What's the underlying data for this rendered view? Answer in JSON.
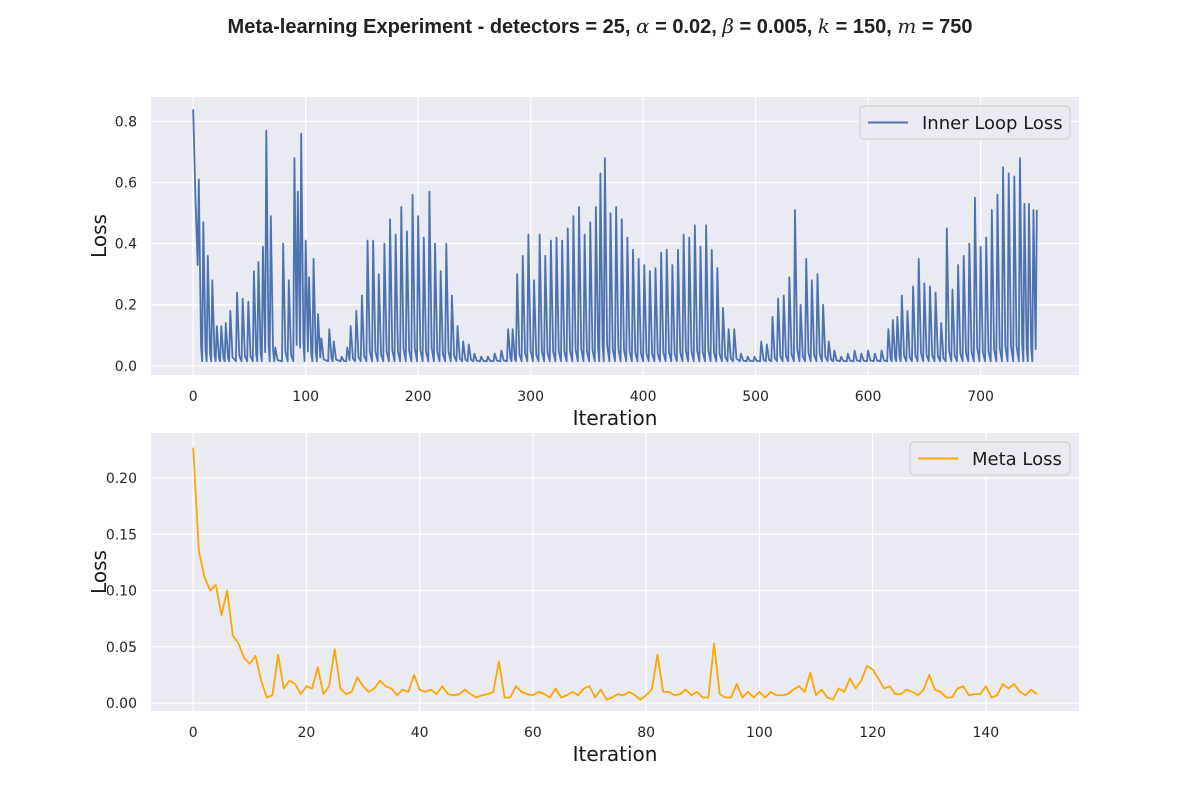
{
  "title": {
    "prefix": "Meta-learning Experiment - detectors = 25, ",
    "alpha_sym": "α",
    "alpha_val": " = 0.02, ",
    "beta_sym": "β",
    "beta_val": " = 0.005, ",
    "k_sym": "k",
    "k_val": " = 150, ",
    "m_sym": "m",
    "m_val": " = 750"
  },
  "colors": {
    "background": "#eaeaf2",
    "grid": "#ffffff",
    "inner": "#4c72b0",
    "meta": "#ffa500"
  },
  "chart_data": [
    {
      "type": "line",
      "title": "",
      "xlabel": "Iteration",
      "ylabel": "Loss",
      "xlim": [
        -37.5,
        787.5
      ],
      "ylim": [
        -0.03,
        0.88
      ],
      "xticks": [
        0,
        100,
        200,
        300,
        400,
        500,
        600,
        700
      ],
      "yticks": [
        0.0,
        0.2,
        0.4,
        0.6,
        0.8
      ],
      "ytick_labels": [
        "0.0",
        "0.2",
        "0.4",
        "0.6",
        "0.8"
      ],
      "grid": true,
      "legend": "top-right",
      "series": [
        {
          "name": "Inner Loop Loss",
          "color": "#4c72b0",
          "baseline": 0.015,
          "start": [
            [
              0,
              0.84
            ],
            [
              2,
              0.55
            ],
            [
              4,
              0.33
            ]
          ],
          "end_x": 750,
          "peaks": [
            [
              5,
              0.61
            ],
            [
              9,
              0.47
            ],
            [
              13,
              0.36
            ],
            [
              17,
              0.28
            ],
            [
              21,
              0.13
            ],
            [
              25,
              0.13
            ],
            [
              29,
              0.14
            ],
            [
              33,
              0.18
            ],
            [
              39,
              0.24
            ],
            [
              44,
              0.22
            ],
            [
              49,
              0.21
            ],
            [
              54,
              0.31
            ],
            [
              58,
              0.34
            ],
            [
              62,
              0.39
            ],
            [
              65,
              0.77
            ],
            [
              69,
              0.49
            ],
            [
              73,
              0.06
            ],
            [
              80,
              0.4
            ],
            [
              85,
              0.28
            ],
            [
              90,
              0.68
            ],
            [
              93,
              0.57
            ],
            [
              96,
              0.76
            ],
            [
              100,
              0.41
            ],
            [
              103,
              0.29
            ],
            [
              107,
              0.35
            ],
            [
              111,
              0.17
            ],
            [
              114,
              0.09
            ],
            [
              121,
              0.12
            ],
            [
              125,
              0.08
            ],
            [
              132,
              0.03
            ],
            [
              137,
              0.06
            ],
            [
              140,
              0.13
            ],
            [
              145,
              0.18
            ],
            [
              150,
              0.23
            ],
            [
              155,
              0.41
            ],
            [
              160,
              0.41
            ],
            [
              165,
              0.3
            ],
            [
              170,
              0.4
            ],
            [
              175,
              0.48
            ],
            [
              180,
              0.43
            ],
            [
              185,
              0.52
            ],
            [
              190,
              0.44
            ],
            [
              195,
              0.56
            ],
            [
              200,
              0.49
            ],
            [
              205,
              0.42
            ],
            [
              210,
              0.57
            ],
            [
              215,
              0.4
            ],
            [
              220,
              0.31
            ],
            [
              225,
              0.4
            ],
            [
              230,
              0.23
            ],
            [
              235,
              0.13
            ],
            [
              240,
              0.08
            ],
            [
              245,
              0.07
            ],
            [
              250,
              0.04
            ],
            [
              256,
              0.03
            ],
            [
              262,
              0.03
            ],
            [
              268,
              0.04
            ],
            [
              274,
              0.05
            ],
            [
              280,
              0.12
            ],
            [
              284,
              0.12
            ],
            [
              288,
              0.3
            ],
            [
              293,
              0.36
            ],
            [
              298,
              0.43
            ],
            [
              303,
              0.28
            ],
            [
              308,
              0.43
            ],
            [
              313,
              0.36
            ],
            [
              318,
              0.41
            ],
            [
              323,
              0.42
            ],
            [
              328,
              0.41
            ],
            [
              333,
              0.45
            ],
            [
              338,
              0.49
            ],
            [
              343,
              0.52
            ],
            [
              348,
              0.43
            ],
            [
              353,
              0.47
            ],
            [
              358,
              0.52
            ],
            [
              362,
              0.63
            ],
            [
              366,
              0.68
            ],
            [
              371,
              0.5
            ],
            [
              376,
              0.52
            ],
            [
              381,
              0.48
            ],
            [
              386,
              0.42
            ],
            [
              391,
              0.38
            ],
            [
              396,
              0.35
            ],
            [
              401,
              0.33
            ],
            [
              406,
              0.31
            ],
            [
              411,
              0.32
            ],
            [
              416,
              0.37
            ],
            [
              421,
              0.38
            ],
            [
              426,
              0.33
            ],
            [
              431,
              0.38
            ],
            [
              436,
              0.43
            ],
            [
              441,
              0.42
            ],
            [
              446,
              0.46
            ],
            [
              451,
              0.39
            ],
            [
              456,
              0.46
            ],
            [
              461,
              0.38
            ],
            [
              466,
              0.32
            ],
            [
              471,
              0.19
            ],
            [
              476,
              0.12
            ],
            [
              481,
              0.12
            ],
            [
              487,
              0.04
            ],
            [
              493,
              0.03
            ],
            [
              499,
              0.03
            ],
            [
              505,
              0.08
            ],
            [
              510,
              0.07
            ],
            [
              515,
              0.16
            ],
            [
              520,
              0.22
            ],
            [
              525,
              0.23
            ],
            [
              530,
              0.29
            ],
            [
              535,
              0.51
            ],
            [
              540,
              0.2
            ],
            [
              545,
              0.35
            ],
            [
              550,
              0.28
            ],
            [
              555,
              0.3
            ],
            [
              560,
              0.2
            ],
            [
              565,
              0.08
            ],
            [
              570,
              0.05
            ],
            [
              576,
              0.03
            ],
            [
              582,
              0.04
            ],
            [
              588,
              0.05
            ],
            [
              594,
              0.04
            ],
            [
              600,
              0.05
            ],
            [
              606,
              0.04
            ],
            [
              612,
              0.05
            ],
            [
              618,
              0.12
            ],
            [
              622,
              0.15
            ],
            [
              626,
              0.16
            ],
            [
              630,
              0.23
            ],
            [
              635,
              0.18
            ],
            [
              640,
              0.26
            ],
            [
              645,
              0.35
            ],
            [
              650,
              0.27
            ],
            [
              655,
              0.26
            ],
            [
              660,
              0.24
            ],
            [
              665,
              0.14
            ],
            [
              670,
              0.45
            ],
            [
              675,
              0.25
            ],
            [
              680,
              0.33
            ],
            [
              685,
              0.36
            ],
            [
              690,
              0.4
            ],
            [
              695,
              0.55
            ],
            [
              700,
              0.39
            ],
            [
              705,
              0.42
            ],
            [
              710,
              0.51
            ],
            [
              715,
              0.56
            ],
            [
              720,
              0.65
            ],
            [
              725,
              0.63
            ],
            [
              730,
              0.62
            ],
            [
              735,
              0.68
            ],
            [
              739,
              0.53
            ],
            [
              743,
              0.53
            ],
            [
              747,
              0.51
            ],
            [
              750,
              0.51
            ]
          ]
        }
      ]
    },
    {
      "type": "line",
      "title": "",
      "xlabel": "Iteration",
      "ylabel": "Loss",
      "xlim": [
        -7.45,
        156.45
      ],
      "ylim": [
        -0.007,
        0.24
      ],
      "xticks": [
        0,
        20,
        40,
        60,
        80,
        100,
        120,
        140
      ],
      "yticks": [
        0.0,
        0.05,
        0.1,
        0.15,
        0.2
      ],
      "ytick_labels": [
        "0.00",
        "0.05",
        "0.10",
        "0.15",
        "0.20"
      ],
      "grid": true,
      "legend": "top-right",
      "series": [
        {
          "name": "Meta Loss",
          "color": "#ffa500",
          "x_start": 0,
          "values": [
            0.227,
            0.135,
            0.112,
            0.1,
            0.105,
            0.078,
            0.1,
            0.06,
            0.053,
            0.04,
            0.035,
            0.042,
            0.02,
            0.005,
            0.007,
            0.043,
            0.013,
            0.02,
            0.017,
            0.008,
            0.015,
            0.013,
            0.032,
            0.008,
            0.015,
            0.048,
            0.013,
            0.008,
            0.01,
            0.023,
            0.015,
            0.01,
            0.013,
            0.02,
            0.015,
            0.013,
            0.007,
            0.012,
            0.01,
            0.025,
            0.012,
            0.01,
            0.012,
            0.008,
            0.015,
            0.008,
            0.007,
            0.008,
            0.012,
            0.008,
            0.005,
            0.007,
            0.008,
            0.01,
            0.037,
            0.005,
            0.005,
            0.015,
            0.01,
            0.008,
            0.007,
            0.01,
            0.008,
            0.005,
            0.013,
            0.005,
            0.007,
            0.01,
            0.007,
            0.013,
            0.015,
            0.005,
            0.012,
            0.003,
            0.005,
            0.008,
            0.007,
            0.01,
            0.007,
            0.003,
            0.007,
            0.012,
            0.043,
            0.01,
            0.01,
            0.007,
            0.008,
            0.012,
            0.007,
            0.01,
            0.005,
            0.005,
            0.053,
            0.008,
            0.005,
            0.005,
            0.017,
            0.005,
            0.01,
            0.005,
            0.01,
            0.005,
            0.01,
            0.007,
            0.007,
            0.008,
            0.012,
            0.015,
            0.01,
            0.027,
            0.007,
            0.012,
            0.005,
            0.003,
            0.013,
            0.01,
            0.022,
            0.013,
            0.02,
            0.033,
            0.03,
            0.022,
            0.013,
            0.015,
            0.008,
            0.008,
            0.012,
            0.01,
            0.007,
            0.012,
            0.025,
            0.012,
            0.01,
            0.005,
            0.005,
            0.013,
            0.015,
            0.007,
            0.008,
            0.008,
            0.015,
            0.005,
            0.007,
            0.017,
            0.013,
            0.017,
            0.01,
            0.007,
            0.012,
            0.008
          ]
        }
      ]
    }
  ]
}
